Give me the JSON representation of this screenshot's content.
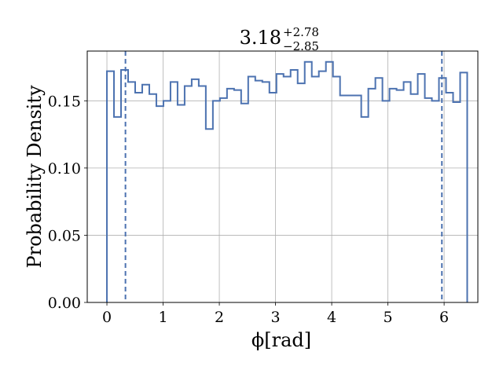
{
  "chart_data": {
    "type": "histogram",
    "title": {
      "value": "3.18",
      "upper": "+2.78",
      "lower": "−2.85"
    },
    "xlabel": "ϕ[rad]",
    "ylabel": "Probability Density",
    "xlim": [
      -0.35,
      6.6
    ],
    "ylim": [
      0,
      0.187
    ],
    "xticks": [
      0,
      1,
      2,
      3,
      4,
      5,
      6
    ],
    "xtick_labels": [
      "0",
      "1",
      "2",
      "3",
      "4",
      "5",
      "6"
    ],
    "yticks": [
      0,
      0.05,
      0.1,
      0.15
    ],
    "ytick_labels": [
      "0.00",
      "0.05",
      "0.10",
      "0.15"
    ],
    "grid": true,
    "bin_start": 0.0,
    "bin_width": 0.1257,
    "values": [
      0.172,
      0.138,
      0.173,
      0.164,
      0.156,
      0.162,
      0.155,
      0.146,
      0.15,
      0.164,
      0.147,
      0.161,
      0.166,
      0.161,
      0.129,
      0.15,
      0.152,
      0.159,
      0.158,
      0.148,
      0.168,
      0.165,
      0.164,
      0.156,
      0.17,
      0.168,
      0.173,
      0.163,
      0.179,
      0.168,
      0.172,
      0.179,
      0.168,
      0.154,
      0.154,
      0.154,
      0.138,
      0.159,
      0.167,
      0.15,
      0.159,
      0.158,
      0.164,
      0.155,
      0.17,
      0.152,
      0.15,
      0.167,
      0.156,
      0.149,
      0.171
    ],
    "interval_lines": [
      0.33,
      5.96
    ],
    "colors": {
      "series": "#4c72b0",
      "grid": "#b0b0b0",
      "axis": "#000000"
    }
  }
}
